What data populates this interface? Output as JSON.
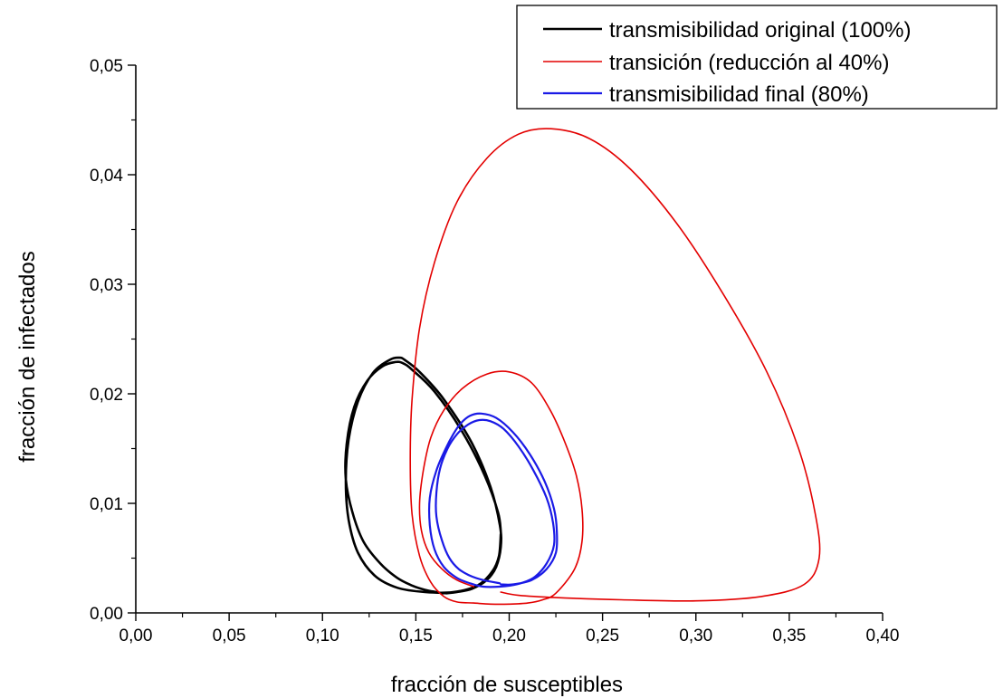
{
  "chart_data": {
    "type": "line",
    "xlabel": "fracción de susceptibles",
    "ylabel": "fracción de infectados",
    "xlim": [
      0,
      0.4
    ],
    "ylim": [
      0,
      0.05
    ],
    "xticks": [
      {
        "value": 0.0,
        "label": "0,00"
      },
      {
        "value": 0.05,
        "label": "0,05"
      },
      {
        "value": 0.1,
        "label": "0,10"
      },
      {
        "value": 0.15,
        "label": "0,15"
      },
      {
        "value": 0.2,
        "label": "0,20"
      },
      {
        "value": 0.25,
        "label": "0,25"
      },
      {
        "value": 0.3,
        "label": "0,30"
      },
      {
        "value": 0.35,
        "label": "0,35"
      },
      {
        "value": 0.4,
        "label": "0,40"
      }
    ],
    "yticks": [
      {
        "value": 0.0,
        "label": "0,00"
      },
      {
        "value": 0.01,
        "label": "0,01"
      },
      {
        "value": 0.02,
        "label": "0,02"
      },
      {
        "value": 0.03,
        "label": "0,03"
      },
      {
        "value": 0.04,
        "label": "0,04"
      },
      {
        "value": 0.05,
        "label": "0,05"
      }
    ],
    "grid": false,
    "legend_position": "top-right",
    "series": [
      {
        "name": "transmisibilidad original (100%)",
        "color": "#000000",
        "line_width": 2.6,
        "x": [
          0.1955,
          0.1945,
          0.191,
          0.183,
          0.17,
          0.155,
          0.14,
          0.128,
          0.119,
          0.114,
          0.1125,
          0.114,
          0.119,
          0.127,
          0.136,
          0.141,
          0.144,
          0.152,
          0.165,
          0.18,
          0.19,
          0.195,
          0.1955,
          0.193,
          0.188,
          0.18,
          0.172,
          0.167,
          0.1655,
          0.164,
          0.161,
          0.155,
          0.148,
          0.14,
          0.131,
          0.122,
          0.116,
          0.1125,
          0.113,
          0.117,
          0.124,
          0.132,
          0.139,
          0.143,
          0.148,
          0.16,
          0.175,
          0.187,
          0.194,
          0.1955
        ],
        "y": [
          0.0072,
          0.0052,
          0.0038,
          0.0025,
          0.0019,
          0.0019,
          0.0023,
          0.0034,
          0.0055,
          0.0085,
          0.012,
          0.0158,
          0.0193,
          0.0219,
          0.0231,
          0.0233,
          0.0231,
          0.022,
          0.0195,
          0.0155,
          0.0115,
          0.008,
          0.006,
          0.0042,
          0.003,
          0.0022,
          0.0019,
          0.0018,
          0.0018,
          0.0018,
          0.0019,
          0.0021,
          0.0025,
          0.0032,
          0.0045,
          0.0065,
          0.0092,
          0.0122,
          0.0155,
          0.0188,
          0.0212,
          0.0225,
          0.0229,
          0.0228,
          0.0222,
          0.0202,
          0.0165,
          0.0125,
          0.0092,
          0.0075
        ]
      },
      {
        "name": "transición (reducción al 40%)",
        "color": "#e30000",
        "line_width": 1.6,
        "x": [
          0.1955,
          0.205,
          0.225,
          0.26,
          0.3,
          0.335,
          0.358,
          0.366,
          0.364,
          0.355,
          0.338,
          0.315,
          0.29,
          0.265,
          0.243,
          0.2225,
          0.205,
          0.188,
          0.172,
          0.16,
          0.152,
          0.148,
          0.147,
          0.148,
          0.152,
          0.158,
          0.165,
          0.172,
          0.181,
          0.19,
          0.2,
          0.21,
          0.218,
          0.225,
          0.235,
          0.239,
          0.239,
          0.236,
          0.23,
          0.222,
          0.212,
          0.2,
          0.188,
          0.175,
          0.165,
          0.158,
          0.154,
          0.152,
          0.153,
          0.157,
          0.164,
          0.172,
          0.181
        ],
        "y": [
          0.0019,
          0.0016,
          0.0014,
          0.0012,
          0.0011,
          0.0015,
          0.0026,
          0.005,
          0.009,
          0.015,
          0.022,
          0.029,
          0.0355,
          0.0405,
          0.0433,
          0.0442,
          0.0437,
          0.0415,
          0.0375,
          0.032,
          0.026,
          0.0195,
          0.014,
          0.009,
          0.0052,
          0.0028,
          0.0015,
          0.001,
          0.0009,
          0.0008,
          0.0008,
          0.0009,
          0.0012,
          0.0018,
          0.004,
          0.0065,
          0.0095,
          0.0125,
          0.0155,
          0.0185,
          0.021,
          0.022,
          0.0218,
          0.0205,
          0.0185,
          0.016,
          0.013,
          0.01,
          0.0075,
          0.0055,
          0.004,
          0.003,
          0.0024
        ]
      },
      {
        "name": "transmisibilidad final (80%)",
        "color": "#1a1ae6",
        "line_width": 2.2,
        "x": [
          0.1955,
          0.202,
          0.212,
          0.22,
          0.225,
          0.2255,
          0.224,
          0.219,
          0.211,
          0.202,
          0.193,
          0.185,
          0.179,
          0.174,
          0.17,
          0.166,
          0.161,
          0.1575,
          0.1575,
          0.16,
          0.165,
          0.172,
          0.179,
          0.186,
          0.195,
          0.204,
          0.213,
          0.22,
          0.224,
          0.2235,
          0.22,
          0.213,
          0.205,
          0.197,
          0.19,
          0.184,
          0.178,
          0.172,
          0.167,
          0.163,
          0.161,
          0.161,
          0.164,
          0.168,
          0.173,
          0.179,
          0.186,
          0.195
        ],
        "y": [
          0.0026,
          0.0026,
          0.003,
          0.004,
          0.0055,
          0.0075,
          0.0095,
          0.012,
          0.0145,
          0.0165,
          0.0178,
          0.0182,
          0.018,
          0.0173,
          0.0163,
          0.015,
          0.013,
          0.0105,
          0.008,
          0.0058,
          0.0042,
          0.0032,
          0.0027,
          0.0024,
          0.0024,
          0.0026,
          0.0032,
          0.0045,
          0.0062,
          0.0082,
          0.0105,
          0.013,
          0.0152,
          0.0168,
          0.0175,
          0.0176,
          0.0172,
          0.0163,
          0.015,
          0.0132,
          0.011,
          0.0088,
          0.0066,
          0.005,
          0.004,
          0.0034,
          0.003,
          0.0027
        ]
      }
    ]
  }
}
